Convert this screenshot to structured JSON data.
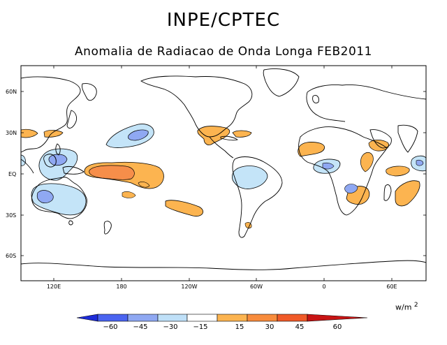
{
  "header": {
    "title": "INPE/CPTEC",
    "subtitle": "Anomalia de Radiacao de Onda Longa FEB2011"
  },
  "map": {
    "lon_labels": [
      "120E",
      "180",
      "120W",
      "60W",
      "0",
      "60E"
    ],
    "lat_labels": [
      "60N",
      "30N",
      "EQ",
      "30S",
      "60S"
    ]
  },
  "colorbar": {
    "units_base": "w/m",
    "units_exp": "2",
    "tick_labels": [
      "−60",
      "−45",
      "−30",
      "−15",
      "15",
      "30",
      "45",
      "60"
    ],
    "colors": [
      "#1e2cd8",
      "#4a64f0",
      "#8fa8f2",
      "#bfe0f8",
      "#ffffff",
      "#fcb450",
      "#f88c3c",
      "#f05a28",
      "#c81414"
    ]
  },
  "anomaly_colors": {
    "neg_strong": "#8fa8f2",
    "neg_weak": "#c4e4f8",
    "pos_weak": "#fcb450",
    "pos_strong": "#f68e4a"
  }
}
